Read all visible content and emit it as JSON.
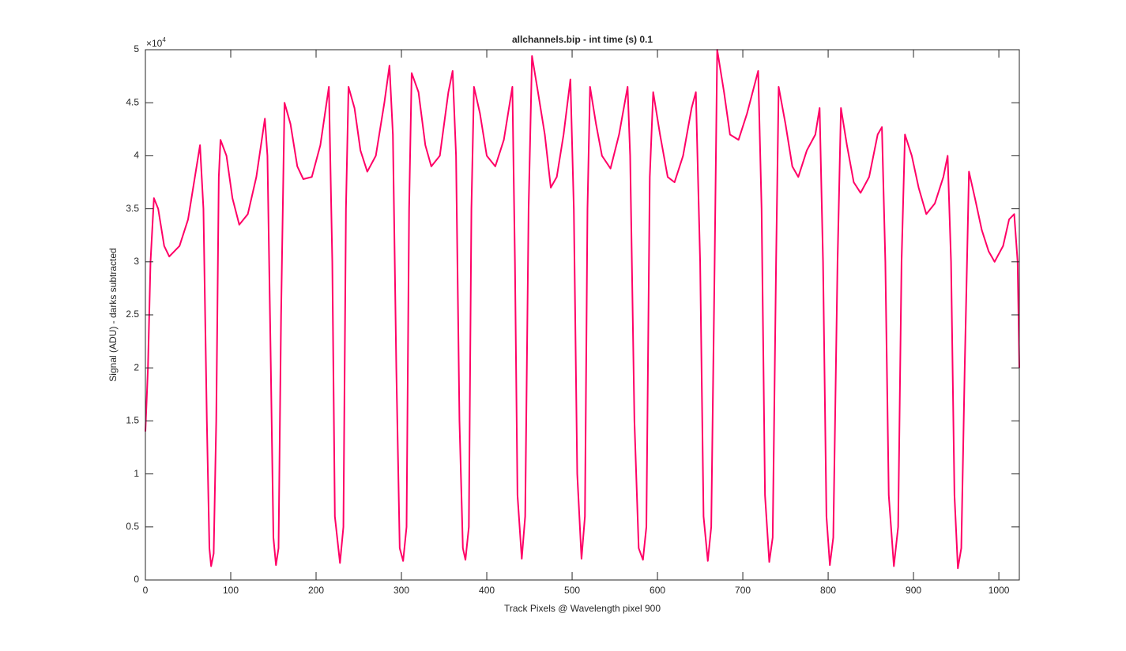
{
  "chart_data": {
    "type": "line",
    "title": "allchannels.bip - int time (s) 0.1",
    "xlabel": "Track Pixels @ Wavelength pixel 900",
    "ylabel": "Signal (ADU) - darks subtracted",
    "y_multiplier": {
      "base": "×10",
      "exponent": "4"
    },
    "xlim": [
      0,
      1024
    ],
    "ylim": [
      0,
      50000
    ],
    "xticks": [
      0,
      100,
      200,
      300,
      400,
      500,
      600,
      700,
      800,
      900,
      1000
    ],
    "yticks": [
      {
        "value": 0,
        "label": "0"
      },
      {
        "value": 5000,
        "label": "0.5"
      },
      {
        "value": 10000,
        "label": "1"
      },
      {
        "value": 15000,
        "label": "1.5"
      },
      {
        "value": 20000,
        "label": "2"
      },
      {
        "value": 25000,
        "label": "2.5"
      },
      {
        "value": 30000,
        "label": "3"
      },
      {
        "value": 35000,
        "label": "3.5"
      },
      {
        "value": 40000,
        "label": "4"
      },
      {
        "value": 45000,
        "label": "4.5"
      },
      {
        "value": 50000,
        "label": "5"
      }
    ],
    "grid": false,
    "x": [
      0,
      3,
      6,
      10,
      15,
      22,
      28,
      40,
      50,
      58,
      64,
      68,
      72,
      75,
      77,
      80,
      83,
      86,
      88,
      95,
      102,
      110,
      120,
      130,
      140,
      143,
      147,
      150,
      153,
      156,
      159,
      163,
      170,
      178,
      185,
      195,
      205,
      215,
      219,
      222,
      228,
      232,
      235,
      238,
      245,
      252,
      260,
      270,
      280,
      286,
      290,
      294,
      298,
      302,
      306,
      309,
      312,
      320,
      328,
      335,
      345,
      355,
      360,
      364,
      368,
      372,
      375,
      379,
      382,
      385,
      392,
      400,
      410,
      420,
      430,
      433,
      436,
      441,
      445,
      449,
      453,
      460,
      468,
      475,
      482,
      490,
      498,
      502,
      506,
      511,
      515,
      518,
      521,
      528,
      535,
      545,
      555,
      565,
      568,
      573,
      578,
      583,
      587,
      591,
      595,
      603,
      612,
      620,
      630,
      640,
      645,
      650,
      654,
      659,
      663,
      667,
      670,
      678,
      685,
      695,
      705,
      718,
      722,
      726,
      731,
      735,
      739,
      742,
      750,
      758,
      765,
      775,
      785,
      790,
      794,
      798,
      802,
      806,
      811,
      815,
      822,
      830,
      838,
      848,
      858,
      863,
      867,
      871,
      877,
      882,
      886,
      890,
      898,
      906,
      915,
      925,
      935,
      940,
      944,
      948,
      952,
      956,
      960,
      965,
      972,
      980,
      988,
      995,
      1005,
      1012,
      1018,
      1022,
      1024
    ],
    "series": [
      {
        "color": "#ff0066",
        "values": [
          14000,
          20000,
          30000,
          36000,
          35000,
          31500,
          30500,
          31500,
          34000,
          38000,
          41000,
          35000,
          15000,
          3000,
          1300,
          2500,
          15000,
          38000,
          41500,
          40000,
          36000,
          33500,
          34500,
          38000,
          43500,
          40000,
          20000,
          4000,
          1400,
          3000,
          25000,
          45000,
          43000,
          39000,
          37800,
          38000,
          41000,
          46500,
          30000,
          6000,
          1600,
          5000,
          35000,
          46500,
          44500,
          40500,
          38500,
          40000,
          45000,
          48500,
          42000,
          20000,
          3000,
          1800,
          5000,
          35000,
          47800,
          46000,
          41000,
          39000,
          40000,
          46000,
          48000,
          40000,
          15000,
          3000,
          1900,
          5000,
          35000,
          46500,
          44000,
          40000,
          39000,
          41500,
          46500,
          30000,
          8000,
          2000,
          6000,
          35000,
          49400,
          46000,
          42000,
          37000,
          38000,
          42000,
          47200,
          35000,
          10000,
          2000,
          6000,
          35000,
          46500,
          43000,
          40000,
          38800,
          42000,
          46500,
          40000,
          15000,
          3000,
          1900,
          5000,
          38000,
          46000,
          42000,
          38000,
          37500,
          40000,
          44500,
          46000,
          30000,
          6000,
          1800,
          5000,
          30000,
          50000,
          46000,
          42000,
          41500,
          44000,
          48000,
          35000,
          8000,
          1700,
          4000,
          30000,
          46500,
          43000,
          39000,
          38000,
          40500,
          42000,
          44500,
          30000,
          6000,
          1400,
          4000,
          30000,
          44500,
          41000,
          37500,
          36500,
          38000,
          42000,
          42700,
          30000,
          8000,
          1300,
          5000,
          30000,
          42000,
          40000,
          37000,
          34500,
          35500,
          38000,
          40000,
          30000,
          8000,
          1100,
          3000,
          20000,
          38500,
          36000,
          33000,
          31000,
          30000,
          31500,
          34000,
          34500,
          30000,
          20000
        ]
      }
    ]
  }
}
